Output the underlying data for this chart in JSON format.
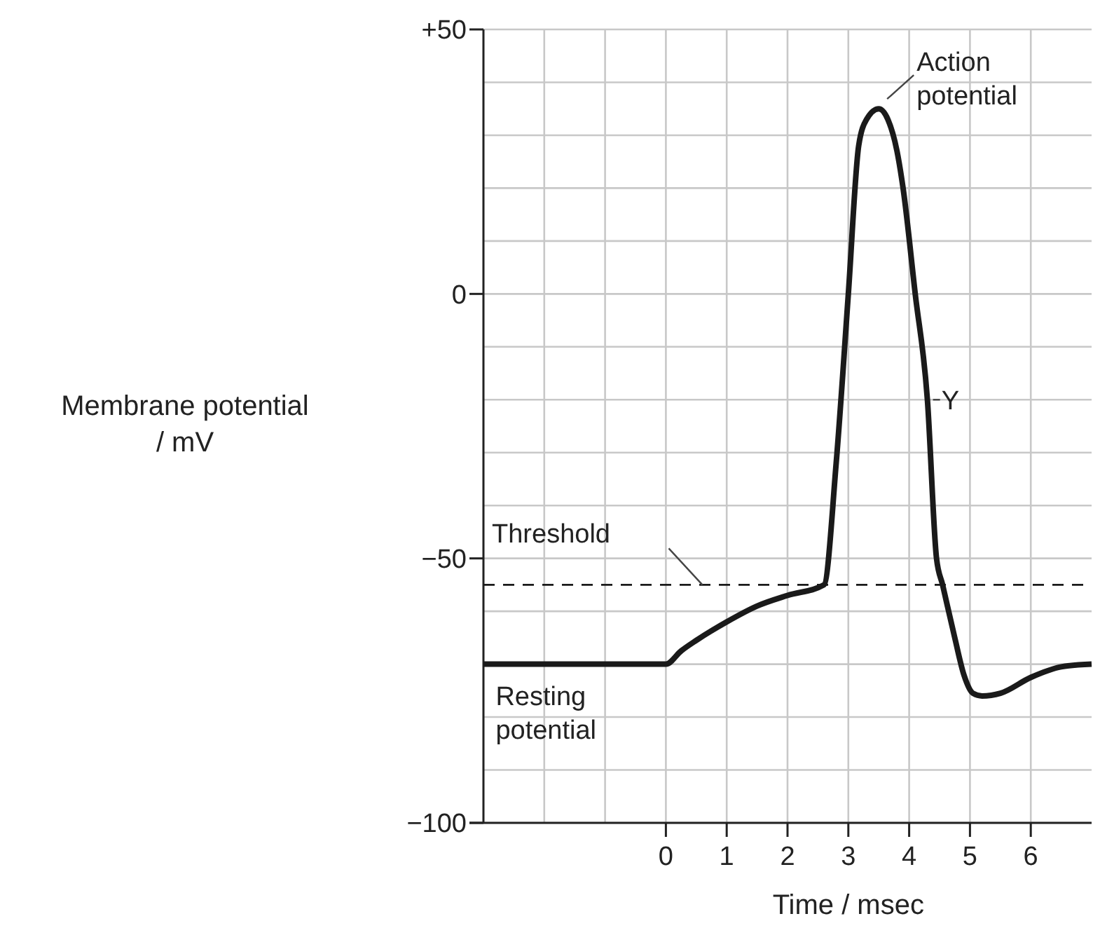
{
  "chart_data": {
    "type": "line",
    "xlabel": "Time / msec",
    "ylabel": "Membrane potential / mV",
    "xlim": [
      -3,
      7
    ],
    "ylim": [
      -100,
      50
    ],
    "xticks": [
      {
        "value": -2,
        "label": null
      },
      {
        "value": -1,
        "label": null
      },
      0,
      1,
      2,
      3,
      4,
      5,
      6
    ],
    "yticks": [
      {
        "value": -100,
        "label": "−100"
      },
      {
        "value": -90,
        "label": null
      },
      {
        "value": -80,
        "label": null
      },
      {
        "value": -70,
        "label": null
      },
      {
        "value": -60,
        "label": null
      },
      {
        "value": -50,
        "label": "−50"
      },
      {
        "value": -40,
        "label": null
      },
      {
        "value": -30,
        "label": null
      },
      {
        "value": -20,
        "label": null
      },
      {
        "value": -10,
        "label": null
      },
      0,
      {
        "value": 10,
        "label": null
      },
      {
        "value": 20,
        "label": null
      },
      {
        "value": 30,
        "label": null
      },
      {
        "value": 40,
        "label": null
      },
      {
        "value": 50,
        "label": "+50"
      }
    ],
    "grid": true,
    "line_style": "solid",
    "marker": "none",
    "series": [
      {
        "color": "#1a1a1a",
        "x": [
          -3,
          0,
          0.25,
          0.5,
          1,
          1.5,
          2,
          2.6,
          2.8,
          3,
          3.17,
          3.3,
          3.5,
          3.65,
          3.8,
          3.9,
          4.1,
          4.3,
          4.45,
          4.55,
          4.75,
          4.9,
          5.05,
          5.2,
          5.5,
          6,
          6.5,
          7
        ],
        "values": [
          -70,
          -70,
          -67.5,
          -65.5,
          -62,
          -59,
          -57,
          -55,
          -32,
          0,
          28,
          33,
          35,
          33,
          27,
          20,
          0,
          -20,
          -50,
          -55,
          -65,
          -72,
          -75.5,
          -76,
          -75.5,
          -72.5,
          -70.5,
          -70
        ]
      }
    ],
    "ref_lines": [
      {
        "axis": "y",
        "value": -55,
        "label": "Threshold",
        "line_style": "dashed",
        "color": "#1a1a1a"
      }
    ],
    "annotations": [
      {
        "text": "Action potential",
        "x": 3.5,
        "y": 35
      },
      {
        "text": "Y",
        "x": 4.3,
        "y": -20
      },
      {
        "text": "Resting potential",
        "x": -2.5,
        "y": -70
      }
    ]
  }
}
